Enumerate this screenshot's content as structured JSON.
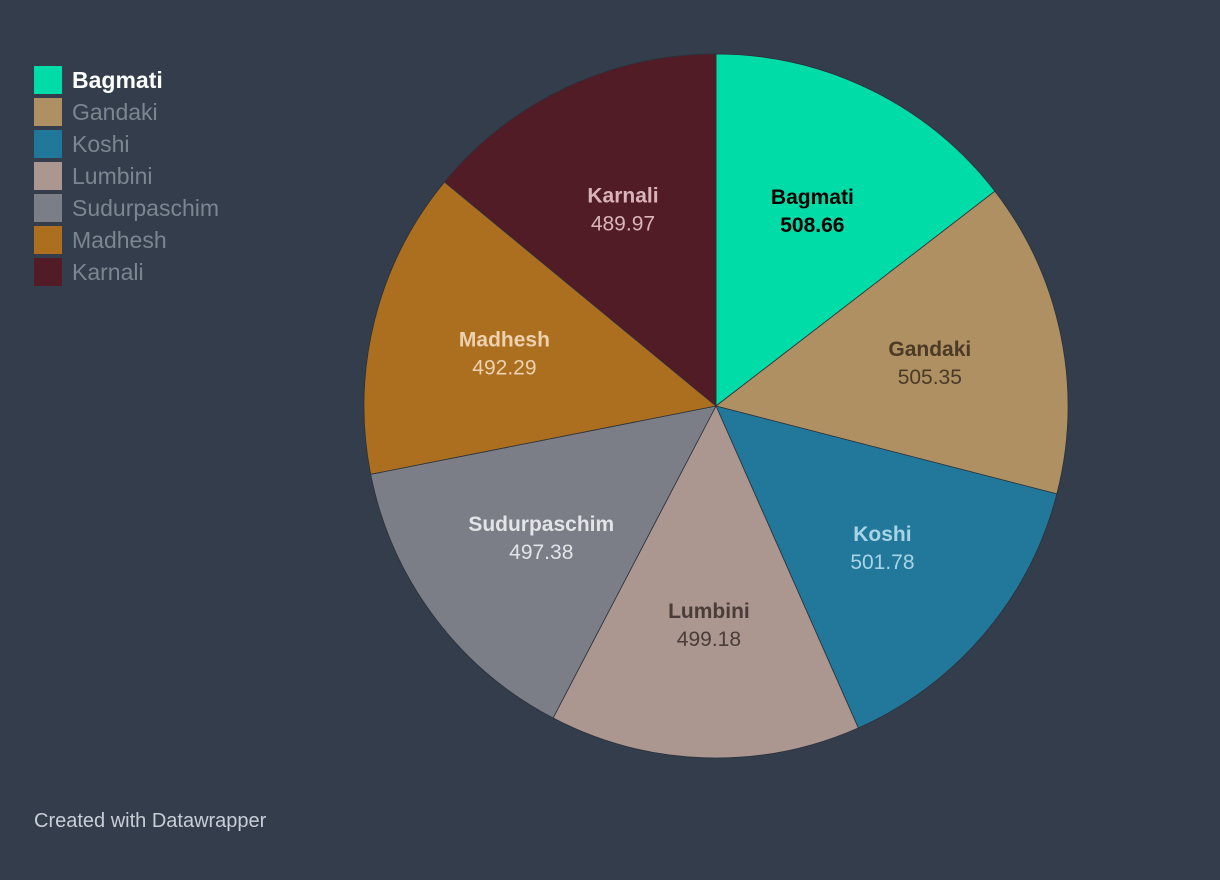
{
  "chart_data": {
    "type": "pie",
    "title": "",
    "categories": [
      "Bagmati",
      "Gandaki",
      "Koshi",
      "Lumbini",
      "Sudurpaschim",
      "Madhesh",
      "Karnali"
    ],
    "values": [
      508.66,
      505.35,
      501.78,
      499.18,
      497.38,
      492.29,
      489.97
    ],
    "value_labels": [
      "508.66",
      "505.35",
      "501.78",
      "499.18",
      "497.38",
      "492.29",
      "489.97"
    ],
    "colors": [
      "#00dca8",
      "#ae9062",
      "#22789b",
      "#ab9690",
      "#7b7e86",
      "#ac6e1f",
      "#521c26"
    ],
    "label_colors": [
      "#000000",
      "#4a3a26",
      "#a8d4e6",
      "#4a3c38",
      "#e2e4e8",
      "#ecd2ae",
      "#d9b4bb"
    ],
    "start_angle_deg": 0,
    "direction": "clockwise",
    "highlighted": "Bagmati",
    "legend_position": "top-left"
  },
  "footer": {
    "credit": "Created with Datawrapper"
  }
}
